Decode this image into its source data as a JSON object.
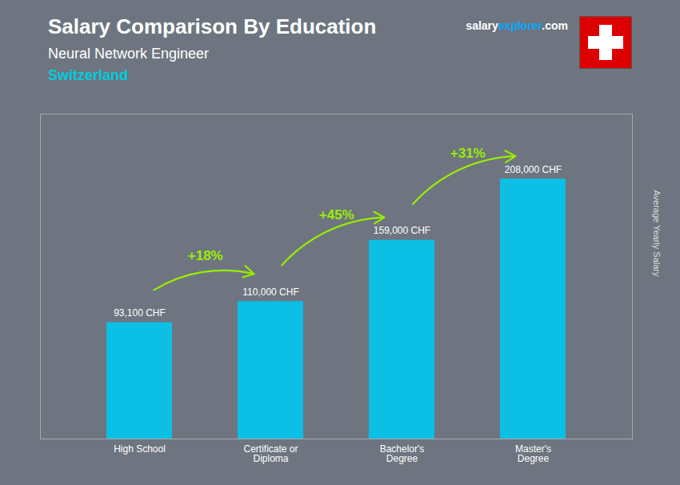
{
  "chart_data": {
    "type": "bar",
    "title": "Salary Comparison By Education",
    "subtitle": "Neural Network Engineer",
    "ylabel": "Average Yearly Salary",
    "categories": [
      "High School",
      "Certificate or\nDiploma",
      "Bachelor's\nDegree",
      "Master's\nDegree"
    ],
    "values": [
      93100,
      110000,
      159000,
      208000
    ],
    "value_labels": [
      "93,100 CHF",
      "110,000 CHF",
      "159,000 CHF",
      "208,000 CHF"
    ],
    "data_labels": true,
    "color": "#00c8f0",
    "ylim": [
      0,
      260000
    ],
    "yticks": [],
    "tick_labels": "x",
    "grid": false,
    "annotations": [
      {
        "text": "Switzerland",
        "position": "header",
        "color": "#00ccdd"
      },
      {
        "text": "salary",
        "position": "brand",
        "color": "#ffffff"
      },
      {
        "text": "explorer",
        "position": "brand",
        "color": "#00aaff"
      },
      {
        "text": ".com",
        "position": "brand",
        "color": "#ffffff"
      },
      {
        "shape": "flag",
        "position": "brand",
        "color": "#dd0000"
      },
      {
        "text": "+18%",
        "from": "High School",
        "to": "Certificate or\nDiploma",
        "color": "#99ee00"
      },
      {
        "text": "+45%",
        "from": "Certificate or\nDiploma",
        "to": "Bachelor's\nDegree",
        "color": "#99ee00"
      },
      {
        "text": "+31%",
        "from": "Bachelor's\nDegree",
        "to": "Master's\nDegree",
        "color": "#99ee00"
      }
    ]
  }
}
